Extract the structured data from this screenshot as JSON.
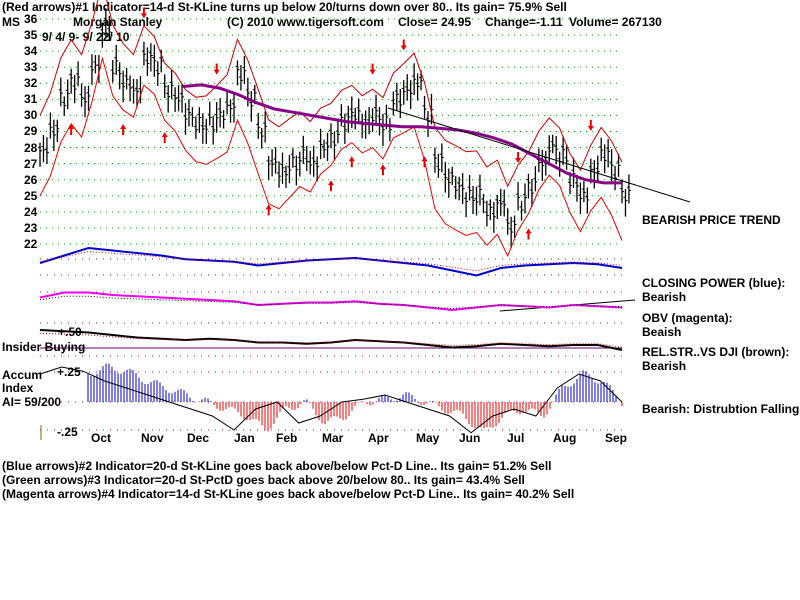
{
  "header": {
    "line1": "(Red arrows)#1 Indicator=14-d St-KLine turns up below 20/turns down over 80.. Its gain= 75.9% Sell",
    "symbol": "MS",
    "company": "Morgan Stanley",
    "copyright": "(C) 2010 www.tigersoft.com",
    "close": "Close=  24.95",
    "change": "Change=-1.11",
    "volume": "Volume= 267130",
    "date_range": "9/ 4/ 9- 9/ 22/ 10"
  },
  "footer": {
    "line1": "(Blue arrows)#2 Indicator=20-d St-KLine goes back above/below Pct-D Line.. Its gain= 51.2% Sell",
    "line2": "(Green arrows)#3 Indicator=20-d St-PctD goes back above 20/below 80.. Its gain= 43.4% Sell",
    "line3": "(Magenta arrows)#4 Indicator=14-d St-KLine goes back above/below Pct-D Line.. Its gain= 40.2% Sell"
  },
  "labels": {
    "price_trend": "BEARISH PRICE TREND",
    "cp1": "CLOSING POWER (blue):",
    "cp2": "Bearish",
    "obv1": "OBV (magenta):",
    "obv2": "Beaish",
    "rs1": "REL.STR..VS DJI (brown):",
    "rs2": "Bearish",
    "ai_note": "Bearish: Distrubtion Falling.",
    "insider": "Insider Buying",
    "plus50": "+.50",
    "accum1": "Accum",
    "accum2": "Index",
    "ai_value": "AI= 59/200",
    "plus25": "+.25",
    "minus25": "-.25"
  },
  "chart_data": {
    "type": "line",
    "title": "MS Morgan Stanley",
    "ylim": [
      22,
      36
    ],
    "yticks": [
      "36",
      "35",
      "34",
      "33",
      "32",
      "31",
      "30",
      "29",
      "28",
      "27",
      "26",
      "25",
      "24",
      "23",
      "22"
    ],
    "months": [
      "Oct",
      "Nov",
      "Dec",
      "Jan",
      "Feb",
      "Mar",
      "Apr",
      "May",
      "Jun",
      "Jul",
      "Aug",
      "Sep"
    ],
    "price_weekly": [
      27.8,
      29,
      31,
      32,
      31,
      33,
      35.5,
      33,
      32,
      31.5,
      33.5,
      33,
      31.5,
      31,
      30,
      29.5,
      29.5,
      30,
      30.5,
      32.5,
      31,
      29,
      27,
      26.5,
      27,
      27.5,
      27,
      28,
      28.5,
      29.5,
      30,
      29.5,
      30,
      29.5,
      31,
      31.5,
      32,
      30,
      27,
      26,
      25.5,
      25,
      25,
      24,
      24.5,
      23,
      24.5,
      25.5,
      27,
      28,
      27.5,
      26,
      25,
      26.5,
      27.5,
      26.5,
      25
    ],
    "ma50": [
      31.8,
      31.9,
      31.7,
      31.3,
      30.8,
      30.4,
      30.2,
      30.0,
      29.8,
      29.6,
      29.5,
      29.4,
      29.3,
      29.3,
      29.2,
      29.1,
      28.9,
      28.6,
      28.2,
      27.6,
      27.0,
      26.4,
      26.0,
      25.8,
      25.8
    ],
    "closing_power": [
      0.2,
      0.5,
      0.8,
      0.7,
      0.6,
      0.5,
      0.35,
      0.3,
      0.25,
      0.1,
      0.2,
      0.3,
      0.35,
      0.4,
      0.3,
      0.2,
      0.1,
      -0.1,
      -0.3,
      0,
      0.1,
      0.15,
      0.2,
      0.15,
      0.0
    ],
    "obv": [
      0.3,
      0.5,
      0.5,
      0.4,
      0.35,
      0.3,
      0.25,
      0.2,
      0.15,
      0.0,
      0.05,
      0.1,
      0.1,
      0.15,
      0.05,
      0,
      -0.1,
      -0.2,
      -0.1,
      0,
      -0.05,
      -0.1,
      0,
      -0.05,
      -0.1
    ],
    "rel_strength": [
      0.6,
      0.55,
      0.5,
      0.4,
      0.3,
      0.25,
      0.2,
      0.25,
      0.2,
      0.1,
      0.1,
      0.05,
      0.1,
      0.2,
      0.15,
      0.1,
      0.0,
      -0.1,
      -0.05,
      0.05,
      0.0,
      -0.05,
      0.0,
      0.0,
      -0.2
    ],
    "accum_index": [
      0.2,
      0.25,
      0.22,
      0.15,
      0.1,
      0.05,
      0,
      -0.05,
      -0.1,
      -0.2,
      -0.05,
      0,
      -0.15,
      -0.1,
      0,
      0.02,
      0.05,
      0,
      -0.05,
      -0.1,
      -0.22,
      -0.1,
      -0.05,
      -0.1,
      0.1,
      0.2,
      0.15,
      0.0
    ],
    "sell_arrows_week": [
      6,
      10,
      17,
      32,
      35,
      46,
      53
    ],
    "buy_arrows_week": [
      3,
      8,
      12,
      22,
      28,
      30,
      33,
      37,
      47
    ]
  }
}
